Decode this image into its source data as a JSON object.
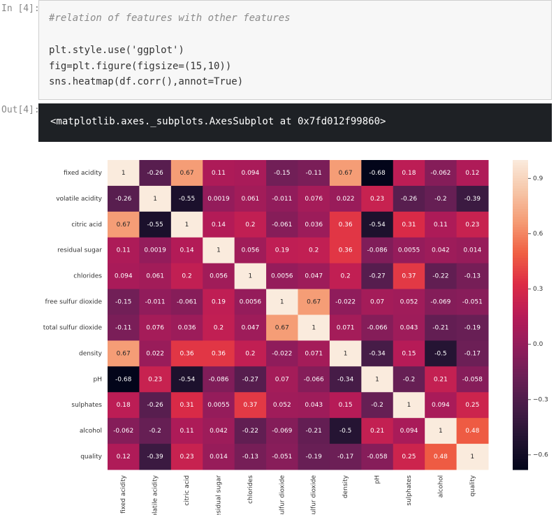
{
  "cell": {
    "in_prompt": "In [4]:",
    "comment": "#relation of features with other features",
    "lines": [
      "plt.style.use('ggplot')",
      "fig=plt.figure(figsize=(15,10))",
      "sns.heatmap(df.corr(),annot=True)"
    ],
    "out_prompt": "Out[4]:",
    "output": "<matplotlib.axes._subplots.AxesSubplot at 0x7fd012f99860>"
  },
  "chart_data": {
    "type": "heatmap",
    "colormap": "rocket",
    "categories": [
      "fixed acidity",
      "volatile acidity",
      "citric acid",
      "residual sugar",
      "chlorides",
      "free sulfur dioxide",
      "total sulfur dioxide",
      "density",
      "pH",
      "sulphates",
      "alcohol",
      "quality"
    ],
    "values": [
      [
        1,
        -0.26,
        0.67,
        0.11,
        0.094,
        -0.15,
        -0.11,
        0.67,
        -0.68,
        0.18,
        -0.062,
        0.12
      ],
      [
        -0.26,
        1,
        -0.55,
        0.0019,
        0.061,
        -0.011,
        0.076,
        0.022,
        0.23,
        -0.26,
        -0.2,
        -0.39
      ],
      [
        0.67,
        -0.55,
        1,
        0.14,
        0.2,
        -0.061,
        0.036,
        0.36,
        -0.54,
        0.31,
        0.11,
        0.23
      ],
      [
        0.11,
        0.0019,
        0.14,
        1,
        0.056,
        0.19,
        0.2,
        0.36,
        -0.086,
        0.0055,
        0.042,
        0.014
      ],
      [
        0.094,
        0.061,
        0.2,
        0.056,
        1,
        0.0056,
        0.047,
        0.2,
        -0.27,
        0.37,
        -0.22,
        -0.13
      ],
      [
        -0.15,
        -0.011,
        -0.061,
        0.19,
        0.0056,
        1,
        0.67,
        -0.022,
        0.07,
        0.052,
        -0.069,
        -0.051
      ],
      [
        -0.11,
        0.076,
        0.036,
        0.2,
        0.047,
        0.67,
        1,
        0.071,
        -0.066,
        0.043,
        -0.21,
        -0.19
      ],
      [
        0.67,
        0.022,
        0.36,
        0.36,
        0.2,
        -0.022,
        0.071,
        1,
        -0.34,
        0.15,
        -0.5,
        -0.17
      ],
      [
        -0.68,
        0.23,
        -0.54,
        -0.086,
        -0.27,
        0.07,
        -0.066,
        -0.34,
        1,
        -0.2,
        0.21,
        -0.058
      ],
      [
        0.18,
        -0.26,
        0.31,
        0.0055,
        0.37,
        0.052,
        0.043,
        0.15,
        -0.2,
        1,
        0.094,
        0.25
      ],
      [
        -0.062,
        -0.2,
        0.11,
        0.042,
        -0.22,
        -0.069,
        -0.21,
        -0.5,
        0.21,
        0.094,
        1,
        0.48
      ],
      [
        0.12,
        -0.39,
        0.23,
        0.014,
        -0.13,
        -0.051,
        -0.19,
        -0.17,
        -0.058,
        0.25,
        0.48,
        1
      ]
    ],
    "colorbar_lim": [
      -0.68,
      1
    ],
    "colorbar_ticks": [
      0.9,
      0.6,
      0.3,
      {
        "value": 0,
        "label": "0.0"
      },
      {
        "value": -0.3,
        "label": "−0.3"
      },
      {
        "value": -0.6,
        "label": "−0.6"
      }
    ]
  }
}
